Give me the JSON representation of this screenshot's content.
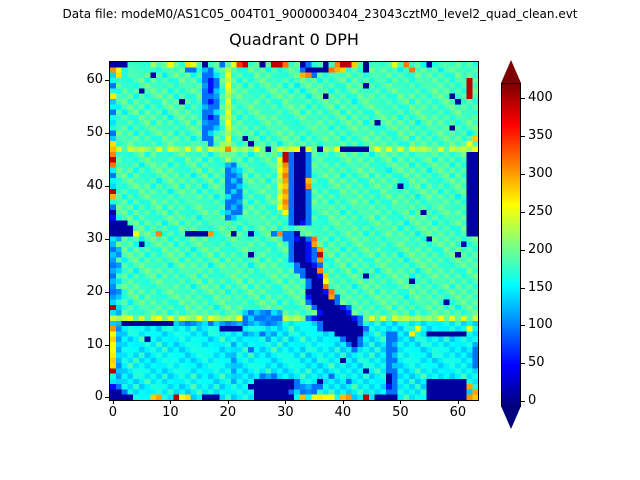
{
  "header": {
    "data_file_label": "Data file: modeM0/AS1C05_004T01_9000003404_23043cztM0_level2_quad_clean.evt"
  },
  "chart_data": {
    "type": "heatmap",
    "title": "Quadrant 0 DPH",
    "x_ticks": [
      0,
      10,
      20,
      30,
      40,
      50,
      60
    ],
    "y_ticks": [
      0,
      10,
      20,
      30,
      40,
      50,
      60
    ],
    "x_range": [
      -0.5,
      63.5
    ],
    "y_range": [
      -0.5,
      63.5
    ],
    "grid_size": 64,
    "colormap": "jet",
    "vmin": -5,
    "vmax": 420,
    "colorbar": {
      "ticks": [
        0,
        50,
        100,
        150,
        200,
        250,
        300,
        350,
        400
      ],
      "extend": "both",
      "over_color": "#7f0000",
      "under_color": "#00007f"
    },
    "value_levels": {
      "0": 8,
      "1": 55,
      "2": 95,
      "3": 125,
      "4": 150,
      "5": 168,
      "6": 185,
      "7": 205,
      "8": 240,
      "9": 268,
      "a": 300,
      "b": 345,
      "c": 395,
      "d": 430
    },
    "orientation": "rows listed top to bottom (first row = y=63); chars left to right (first char = x=0)",
    "grid_rows_top_to_bottom": [
      "0006565866966996066269bc6606cca66026606acca60656696a665066566666",
      "a9556565665662263266866566656666620000aa966606666656a66665666566",
      "496656606566665622368666566665666aa26665666666566666566666656666",
      "46566656666566652126865666665666666656666566666556666656666 665c",
      "26656666566665663126866566666656566666665666066666566665666 666c",
      "45666066665666662136866665666665656666566666566666656666666 666c",
      "95665666666566562236866656666666665660666656666665666666666 066c",
      "4665666656660666212686656666656656666666665666566666566666660666",
      "4566665666666566322686666656666666566665666666656665666666666666",
      "2656656665666665223686666665666665666666566665665666666566666656",
      "4666566666566666212686566666665666656666656666666656666666666566",
      "4566666566666656322686665666666566566666666656066666656666666666",
      "4665666665666666223686666666566656666656666666566666666656606666",
      "2666566666656666236686666566666666665666666566666566666666666656",
      "4656666656666656226686606656666665666666566666666666566666666 66a",
      "9666656666665667626786660666656666666656666666666665666666666696",
      "a87878778787787878 78a878787078888087087800000 7878787878778787879",
      "a65666566566665665667666566666c200266666666665666666665666666600",
      "c66566665666566656667665666668c200266656666666666566666656666600",
      "a65665666656666566563266656668a200266666665666566666566666656600",
      "466656666666566656662336665668a200265666666666655666666566666600",
      "266566566666665665662236566668a200266666566665666656666666656600",
      "466665665666666666562326666568a200a66566666656666665666656666600",
      "456666656666566656662236656668a200a65666666666666606665666666600",
      "c66656666656666566652326666658a200266665666666566566666665666600",
      "a65666665666656666563226665668a200266666656666666666656666665600",
      "466566566666665656662236566668a200266656666665665666666656666600",
      "266656666566666665662326666658a200265666666566666656666666656600",
      "0665666666566566666532266666668200266666566656666666560666666600",
      "1666566566666665656623665666666200266566666666566566666666656600",
      "0006656665665666665666666566666201265666666566666665666656666600",
      "0000665666656666566666566666656666656666566666656656666666665600",
      "00009666a66660000a666066066 62a220666566666665666666665666 6666600",
      "3366656666566666665666656666662 2102a6656666666666566666066666666",
      "36665066666566666566665666665662001a6566666665666666566666666066",
      "23656666566666566666566665666662 0012a666566666665666666665666666",
      "336666566666656666566666066656620012c665666666566656666666660666",
      "365665666666566666656666665666620012a656666665666665666666666666",
      "2366666566566666656666665666665620012666656666666566666666566666",
      "336656666666656666665666666566662200a666665666566666656666666566",
      "2665666656666665665666666566666662001966666606666666566666666666",
      "3366656666566666566666656666665666200966666666666666066665666666",
      "366666566566665666656666566665 6666200a66665666665666666666656666",
      "23566666666656666666566666665666660001a6666666566665666666666666",
      "3366656656666666656666666656666666100 0a26666666666 6566666 6666666",
      "3665666666656666666665666666656666200002666666666666665666066666",
      "c366665666665666665666665666666566620000126666666566666666665666",
      "3366566666566666666666632332336666661000016666666666566666666666",
      "8788787887878878788787823223228787210000001278787878787878787878",
      "4300000000033233323323323332334445442000000244544454444454445444",
      "a344544445444454445000044544444544542000000024444445494445444494",
      "9345444544445444454444433323344544454440000044542244944000000044",
      "9344450444544445444544445443445445444454200244452244454444544444",
      "9344544454444454445443444544454454444544420245442344445444445443",
      "8345444445444445454443452444544444544445442444542244544445444442",
      "9344454444454444544443445444445445444444544445442344454454444442",
      "a344544444544444444543444454444544445444044544442244544444454442",
      "9345444454444544445443444544444454444454444454442344444544444442",
      "c344454444445444544443444445444444544444444404542244454444544444",
      "4344544445444454444543444423244445444424444454440244445444444544",
      "4344445444454444544443444000000024440444424444540244544000000044",
      "1244544454444454445444440000000023322444445444441244454000000 0a4",
      "0024445444544445444454444000000242324454444544 44224444500000004a",
      "0000454aa44c99440004544440000 0004a499894aa44c40000454450000000aa"
    ]
  }
}
